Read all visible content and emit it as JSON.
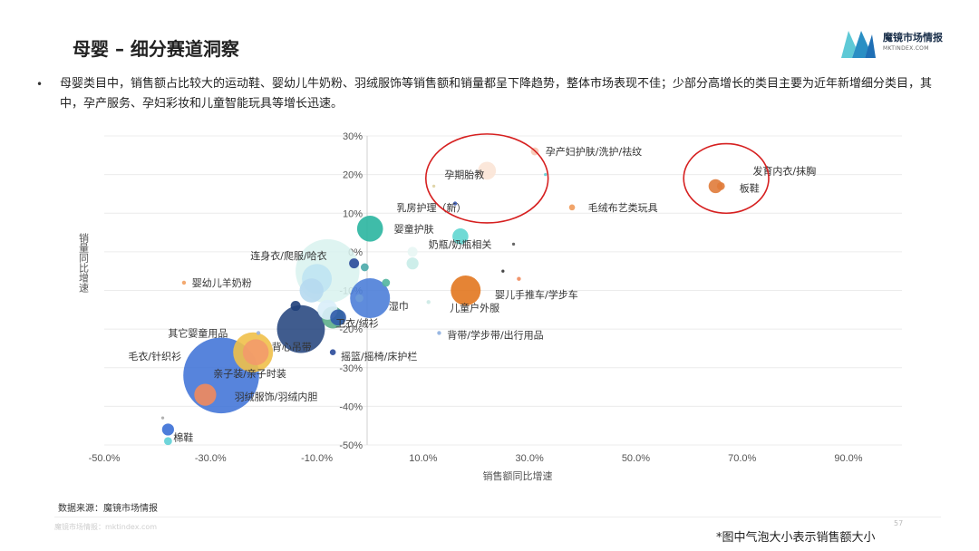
{
  "page": {
    "title": "母婴 – 细分赛道洞察",
    "bullet": "母婴类目中，销售额占比较大的运动鞋、婴幼儿牛奶粉、羽绒服饰等销售额和销量都呈下降趋势，整体市场表现不佳；少部分高增长的类目主要为近年新增细分类目，其中，孕产服务、孕妇彩妆和儿童智能玩具等增长迅速。",
    "source": "数据来源：魔镜市场情报",
    "watermark": "魔镜市场情报：mktindex.com",
    "page_number": "57",
    "footnote": "*图中气泡大小表示销售额大小"
  },
  "logo": {
    "name": "魔镜市场情报",
    "sub": "MKTINDEX.COM",
    "colors": [
      "#5ec9d6",
      "#1f6fb5"
    ]
  },
  "chart_data": {
    "type": "scatter",
    "bubble": true,
    "xlabel": "销售额同比增速",
    "ylabel": "销量同比增速",
    "xlim": [
      -50,
      100
    ],
    "ylim": [
      -50,
      30
    ],
    "xticks": [
      "-50.0%",
      "-30.0%",
      "-10.0%",
      "10.0%",
      "30.0%",
      "50.0%",
      "70.0%",
      "90.0%"
    ],
    "xtick_values": [
      -50,
      -30,
      -10,
      10,
      30,
      50,
      70,
      90
    ],
    "yticks": [
      "30%",
      "20%",
      "10%",
      "0%",
      "-10%",
      "-20%",
      "-30%",
      "-40%",
      "-50%"
    ],
    "ytick_values": [
      30,
      20,
      10,
      0,
      -10,
      -20,
      -30,
      -40,
      -50
    ],
    "gridlines": "horizontal",
    "highlight_circles": [
      {
        "cx": 22,
        "cy": 19,
        "rx": 11.5,
        "ry": 11.5
      },
      {
        "cx": 67,
        "cy": 19,
        "rx": 8,
        "ry": 9
      }
    ],
    "points": [
      {
        "label": "孕产妇护肤/洗护/祛纹",
        "x": 31,
        "y": 26,
        "size": 4,
        "color": "#f7c9b5"
      },
      {
        "label": "发育内衣/抹胸",
        "x": 66,
        "y": 17,
        "size": 4,
        "color": "#e07b3a"
      },
      {
        "label": "孕期胎教",
        "x": 22,
        "y": 21,
        "size": 9,
        "color": "#fbe4d6"
      },
      {
        "label": "毛绒布艺类玩具",
        "x": 38,
        "y": 11.5,
        "size": 3,
        "color": "#ef9a5a"
      },
      {
        "label": "乳房护理（新）",
        "x": 16,
        "y": 12.5,
        "size": 2,
        "color": "#3a58b0"
      },
      {
        "label": "婴童护肤",
        "x": 0,
        "y": 6,
        "size": 13,
        "color": "#2ab5a0"
      },
      {
        "label": "奶瓶/奶瓶相关",
        "x": 17,
        "y": 4,
        "size": 8,
        "color": "#5fd6d0"
      },
      {
        "label": "连身衣/爬服/哈衣",
        "x": -8,
        "y": -5,
        "size": 32,
        "color": "#d8f2ef"
      },
      {
        "label": "婴幼儿羊奶粉",
        "x": -35,
        "y": -8,
        "size": 2,
        "color": "#f2a060"
      },
      {
        "label": "婴儿手推车/学步车",
        "x": 18,
        "y": -10,
        "size": 15,
        "color": "#e2771f"
      },
      {
        "label": "湿巾",
        "x": 0,
        "y": -12,
        "size": 20,
        "color": "#4c7ed8"
      },
      {
        "label": "儿童户外服",
        "x": 11,
        "y": -13,
        "size": 2,
        "color": "#cbe9e4"
      },
      {
        "label": "卫衣/绒衫",
        "x": -6,
        "y": -17,
        "size": 8,
        "color": "#2e5aa8"
      },
      {
        "label": "背带/学步带/出行用品",
        "x": 13,
        "y": -21,
        "size": 2,
        "color": "#8fb0e0"
      },
      {
        "label": "其它婴童用品",
        "x": -21,
        "y": -21,
        "size": 2,
        "color": "#9ab3e0"
      },
      {
        "label": "背心吊带",
        "x": -13,
        "y": -20,
        "size": 24,
        "color": "#1f3f7a"
      },
      {
        "label": "摇篮/摇椅/床护栏",
        "x": -7,
        "y": -26,
        "size": 3,
        "color": "#2a4a9a"
      },
      {
        "label": "毛衣/针织衫",
        "x": -22,
        "y": -26,
        "size": 20,
        "color": "#f0c04a"
      },
      {
        "label": "亲子装/亲子时装",
        "x": -21.5,
        "y": -26,
        "size": 13,
        "color": "#f39a6a"
      },
      {
        "label": "羽绒服饰/羽绒内胆",
        "x": -28,
        "y": -32,
        "size": 38,
        "color": "#3a6fd6"
      },
      {
        "label": "",
        "x": -31,
        "y": -37,
        "size": 11,
        "color": "#f28a5c"
      },
      {
        "label": "棉鞋",
        "x": -38,
        "y": -49,
        "size": 4,
        "color": "#5fd0d6"
      },
      {
        "label": "",
        "x": -38,
        "y": -46,
        "size": 6,
        "color": "#3a6fd6"
      },
      {
        "label": "板鞋",
        "x": 65,
        "y": 17,
        "size": 7,
        "color": "#e07b3a"
      },
      {
        "label": "",
        "x": -10,
        "y": -7,
        "size": 15,
        "color": "#bfe4f2"
      },
      {
        "label": "",
        "x": -11,
        "y": -10,
        "size": 12,
        "color": "#b6d9ef"
      },
      {
        "label": "",
        "x": -8,
        "y": -15,
        "size": 10,
        "color": "#d9eef9"
      },
      {
        "label": "",
        "x": -7,
        "y": -17,
        "size": 11,
        "color": "#5dae8a"
      },
      {
        "label": "",
        "x": -14,
        "y": -14,
        "size": 5,
        "color": "#1f3f7a"
      },
      {
        "label": "",
        "x": -3,
        "y": -3,
        "size": 5,
        "color": "#2a4a9a"
      },
      {
        "label": "",
        "x": -1,
        "y": -4,
        "size": 4,
        "color": "#4aa8a8"
      },
      {
        "label": "",
        "x": -2,
        "y": -12,
        "size": 4,
        "color": "#6b9ad8"
      },
      {
        "label": "",
        "x": 8,
        "y": 0,
        "size": 5,
        "color": "#e8f6f4"
      },
      {
        "label": "",
        "x": 8,
        "y": -3,
        "size": 6,
        "color": "#c8ece8"
      },
      {
        "label": "",
        "x": 3,
        "y": -8,
        "size": 4,
        "color": "#52b59f"
      },
      {
        "label": "",
        "x": 28,
        "y": -7,
        "size": 2,
        "color": "#f08a5c"
      },
      {
        "label": "",
        "x": 25,
        "y": -5,
        "size": 1.5,
        "color": "#333333"
      },
      {
        "label": "",
        "x": 33,
        "y": 20,
        "size": 1.5,
        "color": "#5fd0d6"
      },
      {
        "label": "",
        "x": 12,
        "y": 17,
        "size": 1.5,
        "color": "#ddd0a0"
      },
      {
        "label": "",
        "x": 27,
        "y": 2,
        "size": 1.5,
        "color": "#555555"
      },
      {
        "label": "",
        "x": -39,
        "y": -43,
        "size": 1.5,
        "color": "#aaaaaa"
      }
    ],
    "label_positions": [
      {
        "label": "孕产妇护肤/洗护/祛纹",
        "x": 33,
        "y": 26,
        "anchor": "start"
      },
      {
        "label": "发育内衣/抹胸",
        "x": 72,
        "y": 21,
        "anchor": "start"
      },
      {
        "label": "孕期胎教",
        "x": 14,
        "y": 20,
        "anchor": "start"
      },
      {
        "label": "毛绒布艺类玩具",
        "x": 41,
        "y": 11.5,
        "anchor": "start"
      },
      {
        "label": "乳房护理（新）",
        "x": 5,
        "y": 11.5,
        "anchor": "start"
      },
      {
        "label": "婴童护肤",
        "x": 4.5,
        "y": 6,
        "anchor": "start"
      },
      {
        "label": "奶瓶/奶瓶相关",
        "x": 11,
        "y": 2,
        "anchor": "start"
      },
      {
        "label": "连身衣/爬服/哈衣",
        "x": -22.5,
        "y": -1,
        "anchor": "start"
      },
      {
        "label": "婴幼儿羊奶粉",
        "x": -33.5,
        "y": -8,
        "anchor": "start"
      },
      {
        "label": "婴儿手推车/学步车",
        "x": 23.5,
        "y": -11,
        "anchor": "start"
      },
      {
        "label": "湿巾",
        "x": 3.5,
        "y": -14,
        "anchor": "start"
      },
      {
        "label": "儿童户外服",
        "x": 15,
        "y": -14.5,
        "anchor": "start"
      },
      {
        "label": "卫衣/绒衫",
        "x": -6.5,
        "y": -18.5,
        "anchor": "start"
      },
      {
        "label": "背带/学步带/出行用品",
        "x": 14.5,
        "y": -21.5,
        "anchor": "start"
      },
      {
        "label": "其它婴童用品",
        "x": -38,
        "y": -21,
        "anchor": "start"
      },
      {
        "label": "背心吊带",
        "x": -18.5,
        "y": -24.5,
        "anchor": "start"
      },
      {
        "label": "摇篮/摇椅/床护栏",
        "x": -5.5,
        "y": -27,
        "anchor": "start"
      },
      {
        "label": "毛衣/针织衫",
        "x": -45.5,
        "y": -27,
        "anchor": "start"
      },
      {
        "label": "亲子装/亲子时装",
        "x": -29.5,
        "y": -31.5,
        "anchor": "start"
      },
      {
        "label": "羽绒服饰/羽绒内胆",
        "x": -25.5,
        "y": -37.5,
        "anchor": "start"
      },
      {
        "label": "棉鞋",
        "x": -37,
        "y": -48,
        "anchor": "start"
      },
      {
        "label": "板鞋",
        "x": 69.5,
        "y": 16.5,
        "anchor": "start"
      }
    ]
  }
}
